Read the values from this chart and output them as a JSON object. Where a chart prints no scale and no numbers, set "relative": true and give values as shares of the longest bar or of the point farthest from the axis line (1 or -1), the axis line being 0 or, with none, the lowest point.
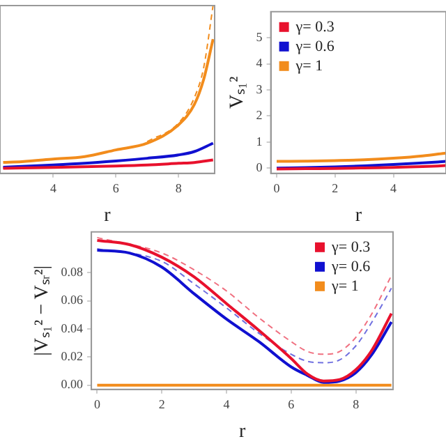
{
  "chart_data": [
    {
      "type": "line",
      "xlabel": "r",
      "relative": true,
      "xlim": [
        2.3,
        9.15
      ],
      "xticks": [
        4,
        6,
        8
      ],
      "grid": false,
      "legend": false,
      "series": [
        {
          "color": "#e8112d",
          "x": [
            2.4,
            3,
            4,
            5,
            6,
            7,
            8,
            8.5,
            9.1
          ],
          "values": [
            0.03,
            0.032,
            0.035,
            0.04,
            0.044,
            0.05,
            0.06,
            0.065,
            0.08
          ]
        },
        {
          "color": "#1010d0",
          "x": [
            2.4,
            3,
            4,
            5,
            6,
            7,
            8,
            8.5,
            9.1
          ],
          "values": [
            0.037,
            0.042,
            0.05,
            0.06,
            0.074,
            0.09,
            0.11,
            0.13,
            0.18
          ]
        },
        {
          "color": "#f28c1c",
          "x": [
            2.4,
            3,
            4,
            5,
            6,
            7,
            8,
            8.5,
            8.8,
            9.1
          ],
          "values": [
            0.066,
            0.07,
            0.085,
            0.1,
            0.14,
            0.18,
            0.29,
            0.41,
            0.56,
            0.8
          ]
        },
        {
          "color": "#f28c1c",
          "line_style": "dashed",
          "x": [
            7,
            8,
            8.5,
            8.8,
            9.1
          ],
          "values": [
            0.19,
            0.3,
            0.45,
            0.63,
            1.0
          ]
        }
      ]
    },
    {
      "type": "line",
      "xlabel": "r",
      "ylabel": "Vₛ₁²",
      "xlim": [
        -0.2,
        5.8
      ],
      "xticks": [
        0,
        2,
        4
      ],
      "ylim": [
        -0.2,
        6
      ],
      "yticks": [
        0,
        1,
        2,
        3,
        4,
        5
      ],
      "grid": false,
      "legend": "top left",
      "series": [
        {
          "name": "γ= 0.3",
          "color": "#e8112d",
          "x": [
            0,
            1,
            2,
            3,
            4,
            5,
            5.8
          ],
          "values": [
            -0.03,
            -0.02,
            -0.01,
            0.01,
            0.03,
            0.06,
            0.1
          ]
        },
        {
          "name": "γ= 0.6",
          "color": "#1010d0",
          "x": [
            0,
            1,
            2,
            3,
            4,
            5,
            5.8
          ],
          "values": [
            0.0,
            0.02,
            0.05,
            0.09,
            0.14,
            0.2,
            0.26
          ]
        },
        {
          "name": "γ= 1",
          "color": "#f28c1c",
          "x": [
            0,
            1,
            2,
            3,
            4,
            5,
            5.8
          ],
          "values": [
            0.26,
            0.27,
            0.29,
            0.32,
            0.38,
            0.47,
            0.58
          ]
        }
      ]
    },
    {
      "type": "line",
      "xlabel": "r",
      "ylabel": "|Vₛ₁² − Vₛᵣ²|",
      "xlim": [
        -0.18,
        9.15
      ],
      "xticks": [
        0,
        2,
        4,
        6,
        8
      ],
      "ylim": [
        -0.003,
        0.109
      ],
      "yticks": [
        {
          "value": 0,
          "label": "0.00"
        },
        {
          "value": 0.02,
          "label": "0.02"
        },
        {
          "value": 0.04,
          "label": "0.04"
        },
        {
          "value": 0.06,
          "label": "0.06"
        },
        {
          "value": 0.08,
          "label": "0.08"
        }
      ],
      "grid": false,
      "legend": "top right",
      "series": [
        {
          "name": "γ= 0.3",
          "color": "#e8112d",
          "x": [
            0,
            1,
            2,
            3,
            4,
            5,
            6,
            6.5,
            7,
            7.5,
            8,
            8.5,
            9.1
          ],
          "values": [
            0.103,
            0.1,
            0.091,
            0.077,
            0.058,
            0.039,
            0.019,
            0.008,
            0.003,
            0.004,
            0.011,
            0.025,
            0.051
          ]
        },
        {
          "name": "γ= 0.6",
          "color": "#1010d0",
          "x": [
            0,
            1,
            2,
            3,
            4,
            5,
            6,
            6.5,
            7,
            7.5,
            8,
            8.5,
            9.1
          ],
          "values": [
            0.096,
            0.094,
            0.084,
            0.065,
            0.047,
            0.031,
            0.013,
            0.007,
            0.002,
            0.003,
            0.009,
            0.022,
            0.045
          ]
        },
        {
          "name": "γ= 1",
          "color": "#f28c1c",
          "x": [
            0,
            9.1
          ],
          "values": [
            0,
            0
          ]
        },
        {
          "color": "#f07080",
          "line_style": "dashed",
          "x": [
            0,
            2,
            3,
            4,
            5,
            6,
            6.5,
            7,
            7.5,
            8,
            8.5,
            9.1
          ],
          "values": [
            0.105,
            0.094,
            0.082,
            0.067,
            0.048,
            0.031,
            0.024,
            0.022,
            0.024,
            0.034,
            0.051,
            0.078
          ]
        },
        {
          "color": "#7070e0",
          "line_style": "dashed",
          "x": [
            0,
            2,
            3,
            4,
            5,
            6,
            6.5,
            7,
            7.5,
            8,
            8.5,
            9.1
          ],
          "values": [
            0.097,
            0.088,
            0.072,
            0.055,
            0.037,
            0.022,
            0.017,
            0.016,
            0.018,
            0.028,
            0.045,
            0.069
          ]
        }
      ]
    }
  ]
}
